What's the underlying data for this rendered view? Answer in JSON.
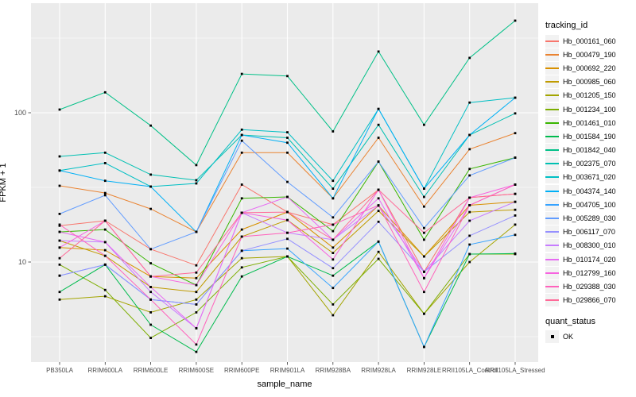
{
  "figure": {
    "background": "#FFFFFF",
    "panel_background": "#EBEBEB",
    "gridline_color": "#FFFFFF",
    "axis_text_color": "#4D4D4D",
    "tick_color": "#333333",
    "marker_color": "#000000"
  },
  "chart_data": {
    "type": "line",
    "title": "",
    "xlabel": "sample_name",
    "ylabel": "FPKM + 1",
    "y_scale": "log10",
    "y_ticks": [
      10,
      100
    ],
    "y_tick_labels": [
      "10",
      "100"
    ],
    "y_minor_gridlines": [
      3.162,
      31.62,
      316.2
    ],
    "ylim": [
      2.2,
      520
    ],
    "grid": true,
    "legend_position": "right",
    "marker": "black-square",
    "categories": [
      "PB350LA",
      "RRIM600LA",
      "RRIM600LE",
      "RRIM600SE",
      "RRIM600PE",
      "RRIM901LA",
      "RRIM928BA",
      "RRIM928LA",
      "RRIM928LE",
      "RRII105LA_Control",
      "RRII105LA_Stressed"
    ],
    "series": [
      {
        "name": "Hb_000161_060",
        "color": "#F8766D",
        "values": [
          17.5,
          18.9,
          12.2,
          9.5,
          33,
          21.6,
          17.8,
          30.5,
          8.6,
          27,
          28.6
        ]
      },
      {
        "name": "Hb_000479_190",
        "color": "#EA8331",
        "values": [
          32.4,
          29,
          22.7,
          15.9,
          54,
          54,
          26.7,
          68,
          23.5,
          57,
          73
        ]
      },
      {
        "name": "Hb_000692_220",
        "color": "#D89000",
        "values": [
          12.5,
          12,
          8.0,
          7.8,
          16.5,
          21.6,
          12.5,
          23.9,
          10.9,
          24,
          25.3
        ]
      },
      {
        "name": "Hb_000985_060",
        "color": "#C09B00",
        "values": [
          13.9,
          11,
          6.8,
          6.3,
          14.8,
          19.1,
          11.5,
          22,
          10.9,
          21.6,
          22.4
        ]
      },
      {
        "name": "Hb_001205_150",
        "color": "#A3A500",
        "values": [
          5.6,
          5.9,
          4.6,
          5.6,
          10.6,
          10.9,
          4.4,
          11.7,
          4.5,
          10,
          17.8
        ]
      },
      {
        "name": "Hb_001234_100",
        "color": "#7CAE00",
        "values": [
          9.6,
          6.5,
          3.1,
          4.6,
          9.2,
          10.9,
          5.2,
          10.5,
          4.5,
          11.3,
          11.3
        ]
      },
      {
        "name": "Hb_001461_010",
        "color": "#39B600",
        "values": [
          15.9,
          16.5,
          9.8,
          7.0,
          26.7,
          27.3,
          16.1,
          47,
          14.1,
          42,
          50
        ]
      },
      {
        "name": "Hb_001584_190",
        "color": "#00BB4E",
        "values": [
          6.3,
          9.6,
          3.8,
          2.5,
          8.0,
          10.9,
          8.1,
          13.7,
          2.7,
          11.3,
          11.4
        ]
      },
      {
        "name": "Hb_001842_040",
        "color": "#00C087",
        "values": [
          105,
          137,
          82,
          44.6,
          182,
          176,
          75,
          257,
          83,
          233,
          414
        ]
      },
      {
        "name": "Hb_002375_070",
        "color": "#00C0B2",
        "values": [
          51,
          54,
          38.5,
          35.3,
          71,
          68,
          31,
          83,
          27.3,
          71,
          99
        ]
      },
      {
        "name": "Hb_003671_020",
        "color": "#00BFC4",
        "values": [
          41,
          46,
          32,
          33.6,
          77,
          74,
          35,
          106,
          31,
          117,
          126
        ]
      },
      {
        "name": "Hb_004374_140",
        "color": "#00B0F6",
        "values": [
          41,
          35,
          32,
          15.9,
          71,
          63,
          26.7,
          106,
          31,
          71,
          126
        ]
      },
      {
        "name": "Hb_004705_100",
        "color": "#35A2FF",
        "values": [
          8.1,
          9.6,
          5.6,
          5.2,
          11.9,
          12.3,
          6.7,
          13.7,
          2.7,
          13.1,
          15.2
        ]
      },
      {
        "name": "Hb_005289_030",
        "color": "#619CFF",
        "values": [
          21,
          28,
          12.2,
          15.9,
          65,
          34.4,
          19.9,
          47,
          16.9,
          38,
          50
        ]
      },
      {
        "name": "Hb_006117_070",
        "color": "#9590FF",
        "values": [
          8.1,
          9.6,
          5.6,
          5.2,
          11.9,
          14.3,
          9.1,
          18.6,
          8.6,
          15,
          20.5
        ]
      },
      {
        "name": "Hb_008300_010",
        "color": "#C77CFF",
        "values": [
          13.9,
          13.6,
          6.3,
          3.6,
          21.4,
          15.7,
          14.1,
          23.9,
          8.6,
          18.9,
          25.3
        ]
      },
      {
        "name": "Hb_010174_020",
        "color": "#E76BF3",
        "values": [
          15.9,
          13.6,
          6.8,
          3.6,
          21.4,
          27.3,
          14.1,
          26.7,
          7.8,
          24,
          33
        ]
      },
      {
        "name": "Hb_012799_160",
        "color": "#F763E0",
        "values": [
          12.5,
          18.9,
          8.0,
          7.0,
          21.4,
          19.1,
          10.4,
          30.5,
          7.8,
          27,
          33
        ]
      },
      {
        "name": "Hb_029388_030",
        "color": "#FF62BC",
        "values": [
          17.8,
          11,
          5.6,
          2.8,
          14.8,
          15.7,
          17.8,
          24,
          6.3,
          24,
          33
        ]
      },
      {
        "name": "Hb_029866_070",
        "color": "#FF6A98",
        "values": [
          10.6,
          18.9,
          8.0,
          8.5,
          21.4,
          21.6,
          14.1,
          30.5,
          15.7,
          27,
          28.6
        ]
      }
    ],
    "legend": {
      "color_legend_title": "tracking_id",
      "shape_legend_title": "quant_status",
      "shape_legend_items": [
        {
          "label": "OK",
          "marker": "black-square"
        }
      ]
    }
  }
}
